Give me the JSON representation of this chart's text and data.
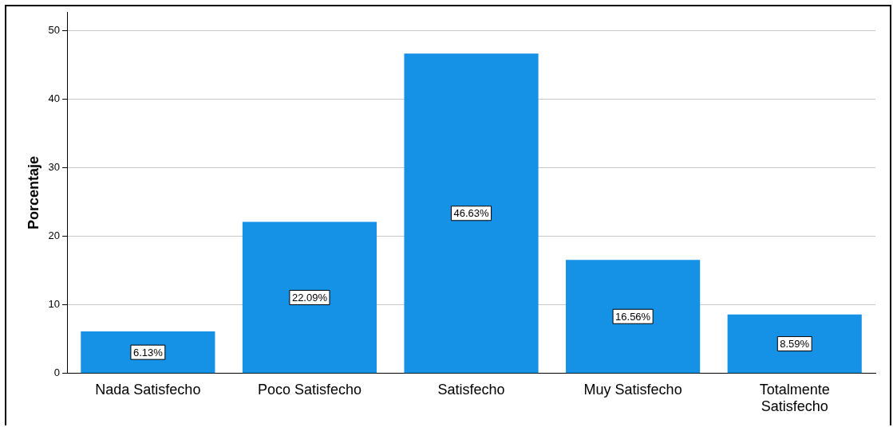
{
  "chart_data": {
    "type": "bar",
    "ylabel": "Porcentaje",
    "categories": [
      "Nada Satisfecho",
      "Poco Satisfecho",
      "Satisfecho",
      "Muy Satisfecho",
      "Totalmente Satisfecho"
    ],
    "values": [
      6.13,
      22.09,
      46.63,
      16.56,
      8.59
    ],
    "value_labels": [
      "6.13%",
      "22.09%",
      "46.63%",
      "16.56%",
      "8.59%"
    ],
    "color": "#1591e6",
    "ylim": [
      0,
      52.7
    ],
    "yticks": [
      0,
      10,
      20,
      30,
      40,
      50
    ],
    "grid": "y"
  }
}
